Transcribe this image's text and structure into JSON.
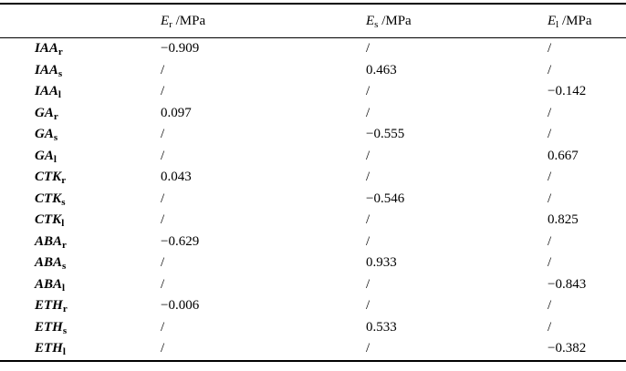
{
  "table": {
    "columns": [
      {
        "symbol": "E",
        "sub": "r",
        "unit": " /MPa"
      },
      {
        "symbol": "E",
        "sub": "s",
        "unit": " /MPa"
      },
      {
        "symbol": "E",
        "sub": "l",
        "unit": " /MPa"
      }
    ],
    "rows": [
      {
        "label": {
          "name": "IAA",
          "sub": "r"
        },
        "values": [
          "−0.909",
          "/",
          "/"
        ]
      },
      {
        "label": {
          "name": "IAA",
          "sub": "s"
        },
        "values": [
          "/",
          "0.463",
          "/"
        ]
      },
      {
        "label": {
          "name": "IAA",
          "sub": "l"
        },
        "values": [
          "/",
          "/",
          "−0.142"
        ]
      },
      {
        "label": {
          "name": "GA",
          "sub": "r"
        },
        "values": [
          "0.097",
          "/",
          "/"
        ]
      },
      {
        "label": {
          "name": "GA",
          "sub": "s"
        },
        "values": [
          "/",
          "−0.555",
          "/"
        ]
      },
      {
        "label": {
          "name": "GA",
          "sub": "l"
        },
        "values": [
          "/",
          "/",
          "0.667"
        ]
      },
      {
        "label": {
          "name": "CTK",
          "sub": "r"
        },
        "values": [
          "0.043",
          "/",
          "/"
        ]
      },
      {
        "label": {
          "name": "CTK",
          "sub": "s"
        },
        "values": [
          "/",
          "−0.546",
          "/"
        ]
      },
      {
        "label": {
          "name": "CTK",
          "sub": "l"
        },
        "values": [
          "/",
          "/",
          "0.825"
        ]
      },
      {
        "label": {
          "name": "ABA",
          "sub": "r"
        },
        "values": [
          "−0.629",
          "/",
          "/"
        ]
      },
      {
        "label": {
          "name": "ABA",
          "sub": "s"
        },
        "values": [
          "/",
          "0.933",
          "/"
        ]
      },
      {
        "label": {
          "name": "ABA",
          "sub": "l"
        },
        "values": [
          "/",
          "/",
          "−0.843"
        ]
      },
      {
        "label": {
          "name": "ETH",
          "sub": "r"
        },
        "values": [
          "−0.006",
          "/",
          "/"
        ]
      },
      {
        "label": {
          "name": "ETH",
          "sub": "s"
        },
        "values": [
          "/",
          "0.533",
          "/"
        ]
      },
      {
        "label": {
          "name": "ETH",
          "sub": "l"
        },
        "values": [
          "/",
          "/",
          "−0.382"
        ]
      }
    ]
  }
}
